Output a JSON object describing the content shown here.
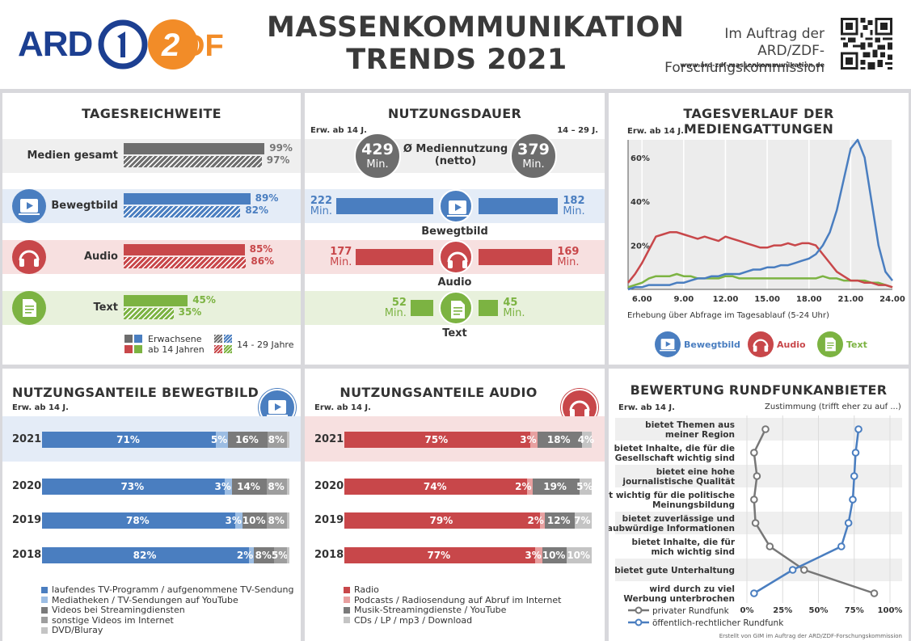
{
  "header": {
    "ard_label": "ARD",
    "zdf_label": "ZDF",
    "title_line1": "MASSENKOMMUNIKATION",
    "title_line2": "TRENDS 2021",
    "commission_line1": "Im Auftrag der ARD/ZDF-",
    "commission_line2": "Forschungskommission",
    "url": "www.ard-zdf-massenkommunikation.de"
  },
  "colors": {
    "video": "#4a7ec0",
    "audio": "#c8474a",
    "text": "#7cb342",
    "total": "#6d6d6d",
    "grey_dark": "#7a7a7a",
    "grey_mid": "#9e9e9e",
    "grey_light": "#c4c4c4",
    "light_blue": "#9cbde3",
    "pink": "#e8a0a0"
  },
  "tagesreichweite": {
    "title": "TAGESREICHWEITE",
    "rows": [
      {
        "label": "Medien gesamt",
        "icon": "none",
        "adults": 99,
        "young": 97,
        "adults_label": "99%",
        "young_label": "97%",
        "color": "total"
      },
      {
        "label": "Bewegtbild",
        "icon": "video-icon",
        "adults": 89,
        "young": 82,
        "adults_label": "89%",
        "young_label": "82%",
        "color": "video"
      },
      {
        "label": "Audio",
        "icon": "headphones-icon",
        "adults": 85,
        "young": 86,
        "adults_label": "85%",
        "young_label": "86%",
        "color": "audio"
      },
      {
        "label": "Text",
        "icon": "document-icon",
        "adults": 45,
        "young": 35,
        "adults_label": "45%",
        "young_label": "35%",
        "color": "text"
      }
    ],
    "legend_adults_1": "Erwachsene",
    "legend_adults_2": "ab 14 Jahren",
    "legend_young": "14 - 29 Jahre"
  },
  "nutzungsdauer": {
    "title": "NUTZUNGSDAUER",
    "left_group": "Erw. ab 14 J.",
    "right_group": "14 – 29 J.",
    "total_left_value": "429",
    "total_left_unit": "Min.",
    "total_right_value": "379",
    "total_right_unit": "Min.",
    "total_label_1": "Ø Mediennutzung",
    "total_label_2": "(netto)",
    "rows": [
      {
        "label": "Bewegtbild",
        "left": 222,
        "right": 182,
        "left_label": "222",
        "right_label": "182",
        "unit": "Min.",
        "color": "video"
      },
      {
        "label": "Audio",
        "left": 177,
        "right": 169,
        "left_label": "177",
        "right_label": "169",
        "unit": "Min.",
        "color": "audio"
      },
      {
        "label": "Text",
        "left": 52,
        "right": 45,
        "left_label": "52",
        "right_label": "45",
        "unit": "Min.",
        "color": "text"
      }
    ]
  },
  "tagesverlauf": {
    "title": "TAGESVERLAUF DER MEDIENGATTUNGEN",
    "group": "Erw. ab 14 J.",
    "note": "Erhebung über Abfrage im Tagesablauf (5-24 Uhr)",
    "legend": [
      {
        "label": "Bewegtbild",
        "icon": "video-icon",
        "color": "video"
      },
      {
        "label": "Audio",
        "icon": "headphones-icon",
        "color": "audio"
      },
      {
        "label": "Text",
        "icon": "document-icon",
        "color": "text"
      }
    ]
  },
  "bewegtbild_anteile": {
    "title": "NUTZUNGSANTEILE BEWEGTBILD",
    "group": "Erw. ab 14 J.",
    "legend": [
      "laufendes TV-Programm / aufgenommene TV-Sendung",
      "Mediatheken / TV-Sendungen auf YouTube",
      "Videos bei Streamingdiensten",
      "sonstige Videos im Internet",
      "DVD/Bluray"
    ]
  },
  "audio_anteile": {
    "title": "NUTZUNGSANTEILE AUDIO",
    "group": "Erw. ab 14 J.",
    "legend": [
      "Radio",
      "Podcasts / Radiosendung auf Abruf im Internet",
      "Musik-Streamingdienste / YouTube",
      "CDs / LP / mp3 / Download"
    ]
  },
  "bewertung": {
    "title": "BEWERTUNG RUNDFUNKANBIETER",
    "group": "Erw. ab 14 J.",
    "scale_note": "Zustimmung (trifft eher zu auf ...)",
    "legend_private": "privater Rundfunk",
    "legend_public": "öffentlich-rechtlicher Rundfunk",
    "items": [
      {
        "label_1": "bietet Themen aus",
        "label_2": "meiner Region"
      },
      {
        "label_1": "bietet Inhalte, die für die",
        "label_2": "Gesellschaft wichtig sind"
      },
      {
        "label_1": "bietet eine hohe",
        "label_2": "journalistische Qualität"
      },
      {
        "label_1": "ist wichtig für die politische",
        "label_2": "Meinungsbildung"
      },
      {
        "label_1": "bietet zuverlässige und",
        "label_2": "glaubwürdige Informationen"
      },
      {
        "label_1": "bietet Inhalte, die für",
        "label_2": "mich wichtig sind"
      },
      {
        "label_1": "bietet gute Unterhaltung",
        "label_2": ""
      },
      {
        "label_1": "wird durch zu viel",
        "label_2": "Werbung unterbrochen"
      }
    ]
  },
  "footer": "Erstellt von GIM im Auftrag der ARD/ZDF-Forschungskommission",
  "chart_data": [
    {
      "type": "line",
      "title": "TAGESVERLAUF DER MEDIENGATTUNGEN",
      "x": [
        5,
        5.5,
        6,
        6.5,
        7,
        7.5,
        8,
        8.5,
        9,
        9.5,
        10,
        10.5,
        11,
        11.5,
        12,
        12.5,
        13,
        13.5,
        14,
        14.5,
        15,
        15.5,
        16,
        16.5,
        17,
        17.5,
        18,
        18.5,
        19,
        19.5,
        20,
        20.5,
        21,
        21.5,
        22,
        22.5,
        23,
        23.5,
        24
      ],
      "xticks": [
        "6.00",
        "9.00",
        "12.00",
        "15.00",
        "18.00",
        "21.00",
        "24.00"
      ],
      "xtick_values": [
        6,
        9,
        12,
        15,
        18,
        21,
        24
      ],
      "yticks": [
        "20%",
        "40%",
        "60%"
      ],
      "ytick_values": [
        20,
        40,
        60
      ],
      "ylim": [
        0,
        68
      ],
      "xlim": [
        5,
        24
      ],
      "series": [
        {
          "name": "Bewegtbild",
          "color": "#4a7ec0",
          "values": [
            0,
            1,
            1,
            2,
            2,
            2,
            2,
            3,
            3,
            4,
            5,
            5,
            6,
            6,
            7,
            7,
            7,
            8,
            9,
            9,
            10,
            10,
            11,
            11,
            12,
            13,
            14,
            16,
            20,
            26,
            36,
            50,
            64,
            68,
            60,
            40,
            20,
            8,
            4
          ]
        },
        {
          "name": "Audio",
          "color": "#c8474a",
          "values": [
            3,
            7,
            12,
            18,
            24,
            25,
            26,
            26,
            25,
            24,
            23,
            24,
            23,
            22,
            24,
            23,
            22,
            21,
            20,
            19,
            19,
            20,
            20,
            21,
            20,
            21,
            21,
            20,
            16,
            12,
            8,
            6,
            4,
            4,
            3,
            3,
            2,
            2,
            1
          ]
        },
        {
          "name": "Text",
          "color": "#7cb342",
          "values": [
            1,
            2,
            3,
            5,
            6,
            6,
            6,
            7,
            6,
            6,
            5,
            5,
            5,
            5,
            6,
            6,
            5,
            5,
            5,
            5,
            5,
            5,
            5,
            5,
            5,
            5,
            5,
            5,
            6,
            5,
            5,
            4,
            4,
            4,
            4,
            3,
            3,
            2,
            1
          ]
        }
      ]
    },
    {
      "type": "bar",
      "title": "NUTZUNGSANTEILE BEWEGTBILD",
      "categories": [
        "2021",
        "2020",
        "2019",
        "2018"
      ],
      "stacked": true,
      "series": [
        {
          "name": "laufendes TV-Programm / aufgenommene TV-Sendung",
          "color": "#4a7ec0",
          "values": [
            71,
            73,
            78,
            82
          ],
          "labels": [
            "71%",
            "73%",
            "78%",
            "82%"
          ]
        },
        {
          "name": "Mediatheken / TV-Sendungen auf YouTube",
          "color": "#9cbde3",
          "values": [
            5,
            3,
            3,
            2
          ],
          "labels": [
            "5%",
            "3%",
            "3%",
            "2%"
          ]
        },
        {
          "name": "Videos bei Streamingdiensten",
          "color": "#7a7a7a",
          "values": [
            16,
            14,
            10,
            8
          ],
          "labels": [
            "16%",
            "14%",
            "10%",
            "8%"
          ]
        },
        {
          "name": "sonstige Videos im Internet",
          "color": "#9e9e9e",
          "values": [
            8,
            8,
            8,
            5
          ],
          "labels": [
            "8%",
            "8%",
            "8%",
            "5%"
          ]
        },
        {
          "name": "DVD/Bluray",
          "color": "#c4c4c4",
          "values": [
            1,
            1,
            1,
            1
          ],
          "labels": [
            "",
            "",
            "",
            ""
          ]
        }
      ]
    },
    {
      "type": "bar",
      "title": "NUTZUNGSANTEILE AUDIO",
      "categories": [
        "2021",
        "2020",
        "2019",
        "2018"
      ],
      "stacked": true,
      "series": [
        {
          "name": "Radio",
          "color": "#c8474a",
          "values": [
            75,
            74,
            79,
            77
          ],
          "labels": [
            "75%",
            "74%",
            "79%",
            "77%"
          ]
        },
        {
          "name": "Podcasts / Radiosendung auf Abruf im Internet",
          "color": "#e8a0a0",
          "values": [
            3,
            2,
            2,
            3
          ],
          "labels": [
            "3%",
            "2%",
            "2%",
            "3%"
          ]
        },
        {
          "name": "Musik-Streamingdienste / YouTube",
          "color": "#7a7a7a",
          "values": [
            18,
            19,
            12,
            10
          ],
          "labels": [
            "18%",
            "19%",
            "12%",
            "10%"
          ]
        },
        {
          "name": "CDs / LP / mp3 / Download",
          "color": "#c4c4c4",
          "values": [
            4,
            5,
            7,
            10
          ],
          "labels": [
            "4%",
            "5%",
            "7%",
            "10%"
          ]
        }
      ]
    },
    {
      "type": "line",
      "title": "BEWERTUNG RUNDFUNKANBIETER",
      "xticks": [
        "0%",
        "25%",
        "50%",
        "75%",
        "100%"
      ],
      "xtick_values": [
        0,
        25,
        50,
        75,
        100
      ],
      "xlim": [
        0,
        100
      ],
      "series": [
        {
          "name": "privater Rundfunk",
          "color": "#777777",
          "values": [
            13,
            5,
            7,
            5,
            6,
            16,
            40,
            89
          ]
        },
        {
          "name": "öffentlich-rechtlicher Rundfunk",
          "color": "#4a7ec0",
          "values": [
            78,
            76,
            75,
            74,
            71,
            66,
            32,
            5
          ]
        }
      ]
    }
  ]
}
